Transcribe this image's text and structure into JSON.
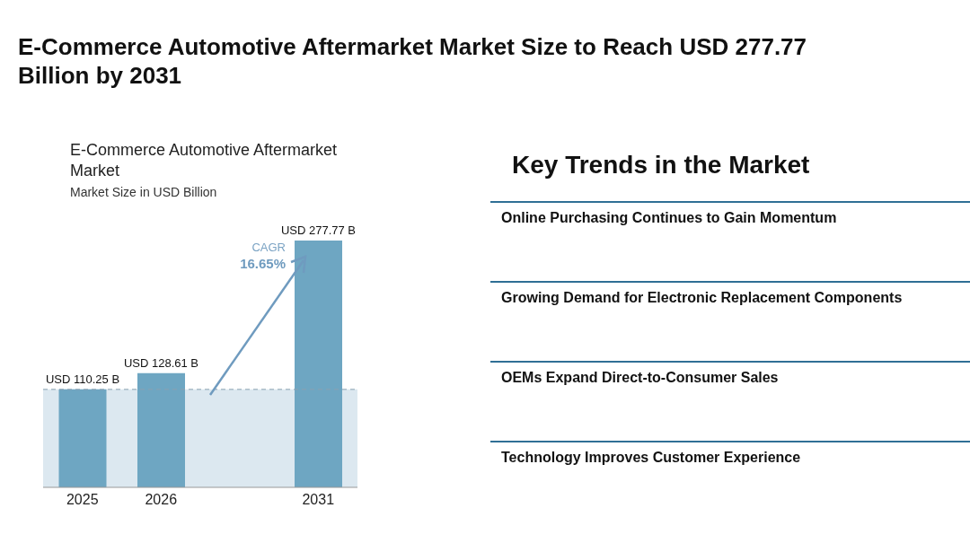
{
  "chart_data": [
    {
      "type": "bar",
      "title": "E-Commerce Automotive Aftermarket Market Size to Reach USD 277.77 Billion by 2031",
      "subtitle": "E-Commerce Automotive Aftermarket Market",
      "ylabel": "Market Size in USD Billion",
      "categories": [
        "2025",
        "2026",
        null,
        "2031"
      ],
      "values": [
        110.25,
        128.61,
        null,
        277.77
      ],
      "color": "#6ea6c2",
      "value_labels": [
        "USD 110.25 B",
        "USD 128.61 B",
        null,
        "USD 277.77 B"
      ],
      "ref_lines": [
        {
          "axis": "y",
          "value": 110.25,
          "color": "#8aa0b0",
          "line_style": "dashed"
        }
      ],
      "bands": [
        {
          "axis": "y",
          "from": 0,
          "to": 110.25,
          "color": "#dce8f0"
        }
      ],
      "annotations": [
        "CAGR",
        "16.65%"
      ]
    },
    {
      "type": "other",
      "title": "Key Trends in the Market",
      "annotations": [
        "Online Purchasing Continues to Gain Momentum",
        "Growing Demand for Electronic Replacement Components",
        "OEMs Expand Direct-to-Consumer Sales",
        "Technology Improves Customer Experience"
      ]
    }
  ]
}
